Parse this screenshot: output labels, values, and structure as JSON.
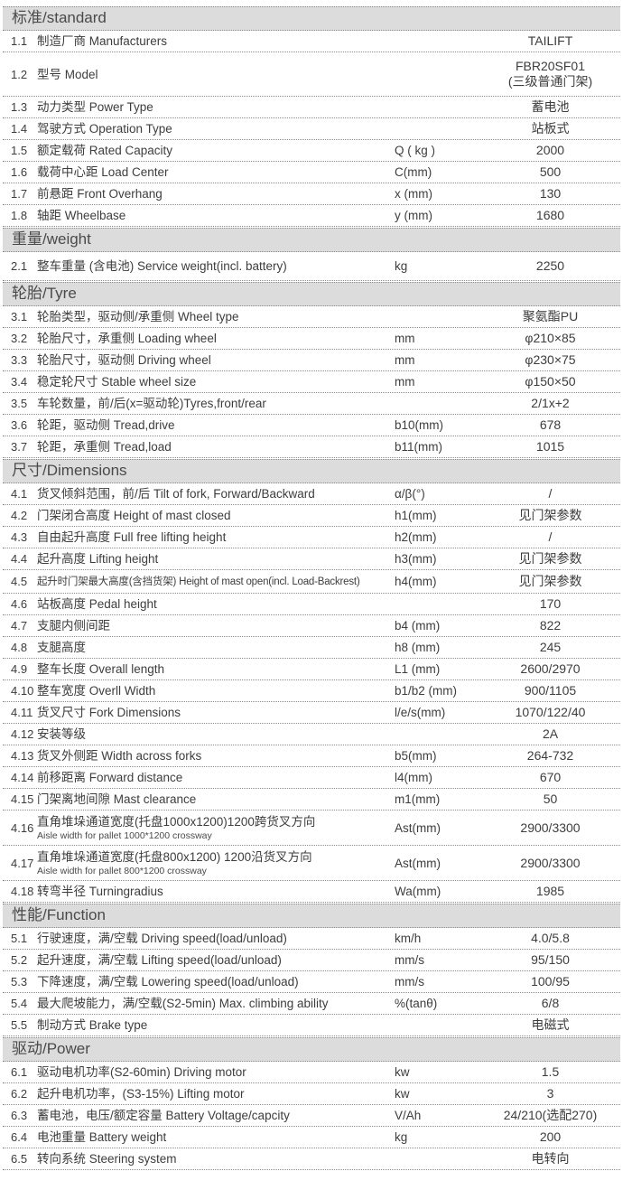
{
  "table": {
    "colors": {
      "header_bg": "#dcdcdc",
      "text": "#3d3d3d",
      "dotted_line": "#8c8c8c"
    },
    "sections": [
      {
        "title": "标准/standard",
        "rows": [
          {
            "no": "1.1",
            "label": "制造厂商 Manufacturers",
            "unit": "",
            "value": "TAILIFT"
          },
          {
            "no": "1.2",
            "label": "型号 Model",
            "unit": "",
            "value": "FBR20SF01",
            "value2": "(三级普通门架)"
          },
          {
            "no": "1.3",
            "label": "动力类型 Power Type",
            "unit": "",
            "value": "蓄电池"
          },
          {
            "no": "1.4",
            "label": "驾驶方式 Operation Type",
            "unit": "",
            "value": "站板式"
          },
          {
            "no": "1.5",
            "label": "额定载荷 Rated Capacity",
            "unit": "Q ( kg )",
            "value": "2000"
          },
          {
            "no": "1.6",
            "label": "载荷中心距 Load Center",
            "unit": "C(mm)",
            "value": "500"
          },
          {
            "no": "1.7",
            "label": "前悬距 Front Overhang",
            "unit": "x (mm)",
            "value": "130"
          },
          {
            "no": "1.8",
            "label": "轴距 Wheelbase",
            "unit": "y (mm)",
            "value": "1680"
          }
        ]
      },
      {
        "title": "重量/weight",
        "rows": [
          {
            "no": "2.1",
            "label": "整车重量 (含电池) Service weight(incl. battery)",
            "unit": "kg",
            "value": "2250",
            "tall": true
          }
        ]
      },
      {
        "title": "轮胎/Tyre",
        "rows": [
          {
            "no": "3.1",
            "label": "轮胎类型，驱动侧/承重侧  Wheel type",
            "unit": "",
            "value": "聚氨酯PU"
          },
          {
            "no": "3.2",
            "label": "轮胎尺寸，承重侧 Loading wheel",
            "unit": "mm",
            "value": "φ210×85"
          },
          {
            "no": "3.3",
            "label": "轮胎尺寸，驱动侧 Driving wheel",
            "unit": "mm",
            "value": "φ230×75"
          },
          {
            "no": "3.4",
            "label": "稳定轮尺寸 Stable wheel size",
            "unit": "mm",
            "value": "φ150×50"
          },
          {
            "no": "3.5",
            "label": "车轮数量，前/后(x=驱动轮)Tyres,front/rear",
            "unit": "",
            "value": "2/1x+2"
          },
          {
            "no": "3.6",
            "label": "轮距，驱动侧 Tread,drive",
            "unit": "b10(mm)",
            "value": "678"
          },
          {
            "no": "3.7",
            "label": "轮距，承重侧 Tread,load",
            "unit": "b11(mm)",
            "value": "1015"
          }
        ]
      },
      {
        "title": "尺寸/Dimensions",
        "rows": [
          {
            "no": "4.1",
            "label": "货叉倾斜范围，前/后 Tilt of fork, Forward/Backward",
            "unit": "α/β(°)",
            "value": "/"
          },
          {
            "no": "4.2",
            "label": "门架闭合高度 Height of mast closed",
            "unit": "h1(mm)",
            "value": "见门架参数"
          },
          {
            "no": "4.3",
            "label": "自由起升高度 Full free lifting height",
            "unit": "h2(mm)",
            "value": "/"
          },
          {
            "no": "4.4",
            "label": "起升高度 Lifting height",
            "unit": "h3(mm)",
            "value": "见门架参数"
          },
          {
            "no": "4.5",
            "label": "起升时门架最大高度(含挡货架) Height of mast open(incl. Load-Backrest)",
            "unit": "h4(mm)",
            "value": "见门架参数",
            "tight": true
          },
          {
            "no": "4.6",
            "label": "站板高度 Pedal height",
            "unit": "",
            "value": "170"
          },
          {
            "no": "4.7",
            "label": "支腿内侧间距",
            "unit": "b4 (mm)",
            "value": "822"
          },
          {
            "no": "4.8",
            "label": "支腿高度",
            "unit": "h8 (mm)",
            "value": "245"
          },
          {
            "no": "4.9",
            "label": "整车长度 Overall length",
            "unit": "L1 (mm)",
            "value": "2600/2970"
          },
          {
            "no": "4.10",
            "label": "整车宽度 Overll Width",
            "unit": "b1/b2 (mm)",
            "value": "900/1105"
          },
          {
            "no": "4.11",
            "label": "货叉尺寸 Fork Dimensions",
            "unit": "l/e/s(mm)",
            "value": "1070/122/40"
          },
          {
            "no": "4.12",
            "label": "安装等级",
            "unit": "",
            "value": "2A"
          },
          {
            "no": "4.13",
            "label": "货叉外侧距 Width across forks",
            "unit": "b5(mm)",
            "value": "264-732"
          },
          {
            "no": "4.14",
            "label": "前移距离 Forward distance",
            "unit": "l4(mm)",
            "value": "670"
          },
          {
            "no": "4.15",
            "label": "门架离地间隙 Mast clearance",
            "unit": "m1(mm)",
            "value": "50"
          },
          {
            "no": "4.16",
            "label": "直角堆垛通道宽度(托盘1000x1200)1200跨货叉方向",
            "sub": "Aisle width for pallet 1000*1200 crossway",
            "unit": "Ast(mm)",
            "value": "2900/3300"
          },
          {
            "no": "4.17",
            "label": "直角堆垛通道宽度(托盘800x1200) 1200沿货叉方向",
            "sub": "Aisle width for pallet 800*1200 crossway",
            "unit": "Ast(mm)",
            "value": "2900/3300"
          },
          {
            "no": "4.18",
            "label": "转弯半径 Turningradius",
            "unit": "Wa(mm)",
            "value": "1985"
          }
        ]
      },
      {
        "title": "性能/Function",
        "rows": [
          {
            "no": "5.1",
            "label": "行驶速度，满/空载 Driving speed(load/unload)",
            "unit": "km/h",
            "value": "4.0/5.8"
          },
          {
            "no": "5.2",
            "label": "起升速度，满/空载 Lifting speed(load/unload)",
            "unit": "mm/s",
            "value": "95/150"
          },
          {
            "no": "5.3",
            "label": "下降速度，满/空载 Lowering speed(load/unload)",
            "unit": "mm/s",
            "value": "100/95"
          },
          {
            "no": "5.4",
            "label": "最大爬坡能力，满/空载(S2-5min) Max. climbing ability",
            "unit": "%(tanθ)",
            "value": "6/8"
          },
          {
            "no": "5.5",
            "label": "制动方式 Brake type",
            "unit": "",
            "value": "电磁式"
          }
        ]
      },
      {
        "title": "驱动/Power",
        "rows": [
          {
            "no": "6.1",
            "label": "驱动电机功率(S2-60min) Driving motor",
            "unit": "kw",
            "value": "1.5"
          },
          {
            "no": "6.2",
            "label": "起升电机功率，(S3-15%) Lifting motor",
            "unit": "kw",
            "value": "3"
          },
          {
            "no": "6.3",
            "label": "蓄电池，电压/额定容量 Battery Voltage/capcity",
            "unit": "V/Ah",
            "value": "24/210(选配270)"
          },
          {
            "no": "6.4",
            "label": "电池重量 Battery weight",
            "unit": "kg",
            "value": "200"
          },
          {
            "no": "6.5",
            "label": "转向系统 Steering system",
            "unit": "",
            "value": "电转向"
          }
        ]
      }
    ]
  }
}
